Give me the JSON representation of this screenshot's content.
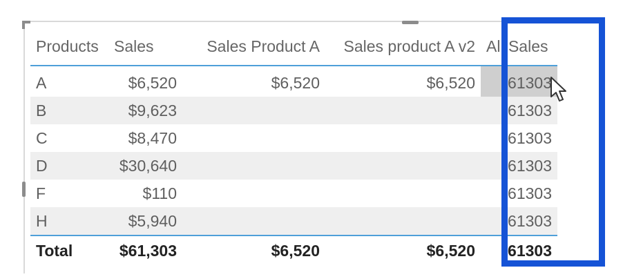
{
  "table": {
    "columns": [
      "Products",
      "Sales",
      "Sales Product A",
      "Sales product A v2",
      "All Sales"
    ],
    "rows": [
      {
        "product": "A",
        "sales": "$6,520",
        "sales_product_a": "$6,520",
        "sales_product_a_v2": "$6,520",
        "all_sales": "61303"
      },
      {
        "product": "B",
        "sales": "$9,623",
        "sales_product_a": "",
        "sales_product_a_v2": "",
        "all_sales": "61303"
      },
      {
        "product": "C",
        "sales": "$8,470",
        "sales_product_a": "",
        "sales_product_a_v2": "",
        "all_sales": "61303"
      },
      {
        "product": "D",
        "sales": "$30,640",
        "sales_product_a": "",
        "sales_product_a_v2": "",
        "all_sales": "61303"
      },
      {
        "product": "F",
        "sales": "$110",
        "sales_product_a": "",
        "sales_product_a_v2": "",
        "all_sales": "61303"
      },
      {
        "product": "H",
        "sales": "$5,940",
        "sales_product_a": "",
        "sales_product_a_v2": "",
        "all_sales": "61303"
      }
    ],
    "total": {
      "label": "Total",
      "sales": "$61,303",
      "sales_product_a": "$6,520",
      "sales_product_a_v2": "$6,520",
      "all_sales": "61303"
    }
  },
  "colors": {
    "highlight": "#1553d6",
    "header_rule": "#4e9fd9",
    "alt_row": "#efefef",
    "selected_cell": "#cfcfcf"
  },
  "icons": {
    "cursor": "mouse-pointer-icon"
  }
}
